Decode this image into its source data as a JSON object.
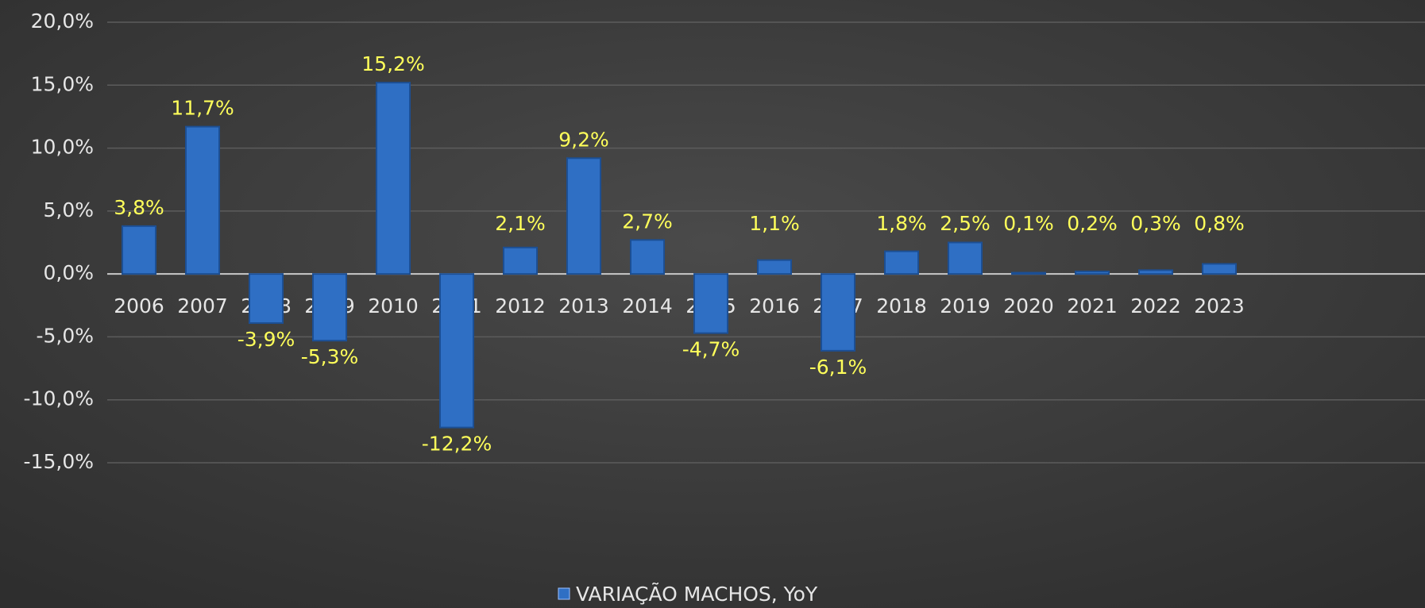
{
  "chart_data": {
    "type": "bar",
    "categories": [
      "2006",
      "2007",
      "2008",
      "2009",
      "2010",
      "2011",
      "2012",
      "2013",
      "2014",
      "2015",
      "2016",
      "2017",
      "2018",
      "2019",
      "2020",
      "2021",
      "2022",
      "2023"
    ],
    "series": [
      {
        "name": "VARIAÇÃO MACHOS, YoY",
        "color": "#2f6fc4",
        "values": [
          3.8,
          11.7,
          -3.9,
          -5.3,
          15.2,
          -12.2,
          2.1,
          9.2,
          2.7,
          -4.7,
          1.1,
          -6.1,
          1.8,
          2.5,
          0.1,
          0.2,
          0.3,
          0.8
        ],
        "value_labels": [
          "3,8%",
          "11,7%",
          "-3,9%",
          "-5,3%",
          "15,2%",
          "-12,2%",
          "2,1%",
          "9,2%",
          "2,7%",
          "-4,7%",
          "1,1%",
          "-6,1%",
          "1,8%",
          "2,5%",
          "0,1%",
          "0,2%",
          "0,3%",
          "0,8%"
        ]
      }
    ],
    "ylim": [
      -15,
      20
    ],
    "yticks": [
      {
        "value": -15,
        "label": "-15,0%"
      },
      {
        "value": -10,
        "label": "-10,0%"
      },
      {
        "value": -5,
        "label": "-5,0%"
      },
      {
        "value": 0,
        "label": "0,0%"
      },
      {
        "value": 5,
        "label": "5,0%"
      },
      {
        "value": 10,
        "label": "10,0%"
      },
      {
        "value": 15,
        "label": "15,0%"
      },
      {
        "value": 20,
        "label": "20,0%"
      }
    ],
    "grid": true,
    "legend": "bottom"
  }
}
